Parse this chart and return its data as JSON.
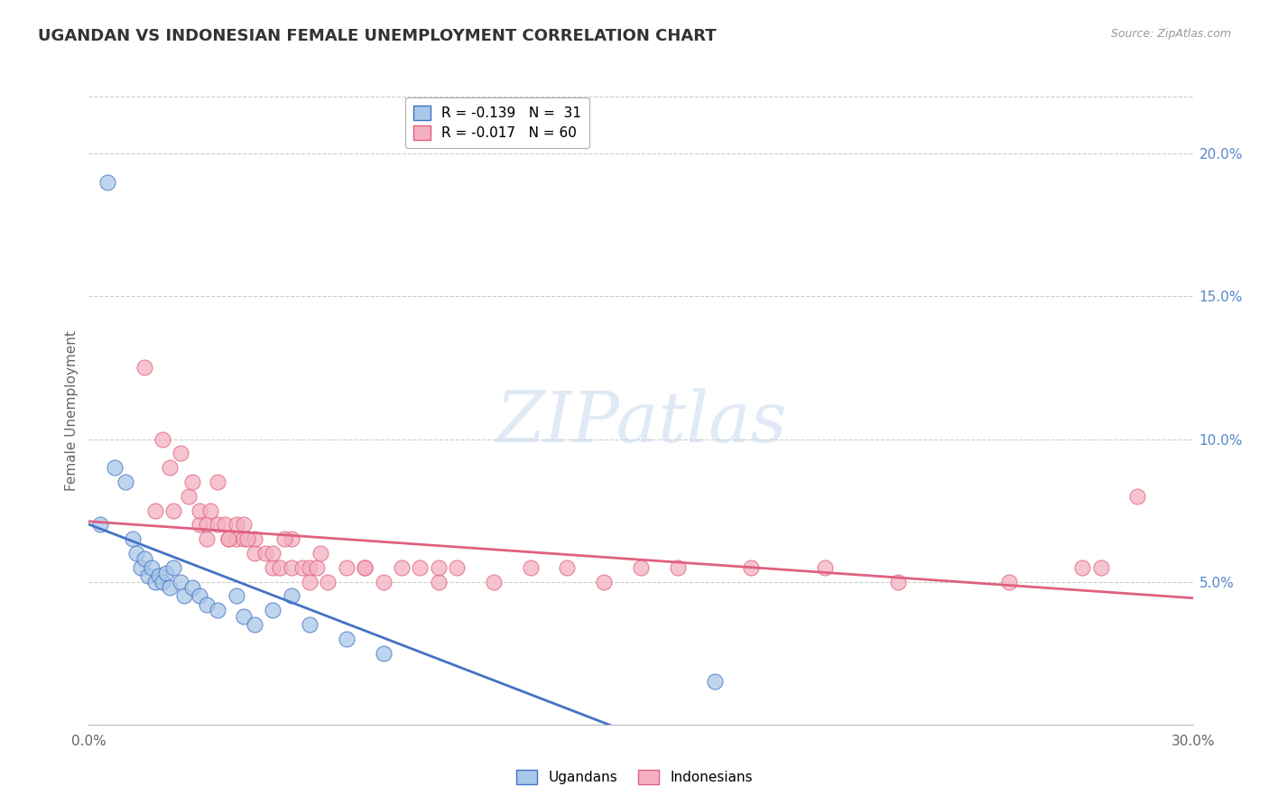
{
  "title": "UGANDAN VS INDONESIAN FEMALE UNEMPLOYMENT CORRELATION CHART",
  "source": "Source: ZipAtlas.com",
  "ylabel": "Female Unemployment",
  "right_yticks": [
    5.0,
    10.0,
    15.0,
    20.0
  ],
  "xmin": 0.0,
  "xmax": 30.0,
  "ymin": 0.0,
  "ymax": 22.0,
  "ugandan_color": "#a8c8e8",
  "indonesian_color": "#f4b0c0",
  "ugandan_line_color": "#4472c4",
  "indonesian_line_color": "#e06080",
  "legend_ugandan_label": "R = -0.139   N =  31",
  "legend_indonesian_label": "R = -0.017   N = 60",
  "ugandan_x": [
    0.5,
    0.7,
    1.0,
    1.2,
    1.3,
    1.4,
    1.5,
    1.6,
    1.7,
    1.8,
    1.9,
    2.0,
    2.1,
    2.2,
    2.3,
    2.5,
    2.6,
    2.8,
    3.0,
    3.2,
    3.5,
    4.0,
    4.2,
    4.5,
    5.0,
    5.5,
    6.0,
    7.0,
    8.0,
    0.3,
    17.0
  ],
  "ugandan_y": [
    19.0,
    9.0,
    8.5,
    6.5,
    6.0,
    5.5,
    5.8,
    5.2,
    5.5,
    5.0,
    5.2,
    5.0,
    5.3,
    4.8,
    5.5,
    5.0,
    4.5,
    4.8,
    4.5,
    4.2,
    4.0,
    4.5,
    3.8,
    3.5,
    4.0,
    4.5,
    3.5,
    3.0,
    2.5,
    7.0,
    1.5
  ],
  "indonesian_x": [
    1.5,
    2.0,
    2.2,
    2.5,
    2.7,
    2.8,
    3.0,
    3.0,
    3.2,
    3.3,
    3.5,
    3.5,
    3.7,
    3.8,
    4.0,
    4.0,
    4.2,
    4.2,
    4.5,
    4.5,
    4.8,
    5.0,
    5.0,
    5.2,
    5.5,
    5.5,
    5.8,
    6.0,
    6.0,
    6.2,
    6.5,
    7.0,
    7.5,
    8.0,
    8.5,
    9.0,
    9.5,
    10.0,
    11.0,
    12.0,
    13.0,
    14.0,
    15.0,
    16.0,
    18.0,
    20.0,
    22.0,
    25.0,
    27.0,
    28.5,
    1.8,
    2.3,
    3.2,
    3.8,
    4.3,
    5.3,
    6.3,
    7.5,
    9.5,
    27.5
  ],
  "indonesian_y": [
    12.5,
    10.0,
    9.0,
    9.5,
    8.0,
    8.5,
    7.0,
    7.5,
    7.0,
    7.5,
    8.5,
    7.0,
    7.0,
    6.5,
    6.5,
    7.0,
    6.5,
    7.0,
    6.0,
    6.5,
    6.0,
    5.5,
    6.0,
    5.5,
    5.5,
    6.5,
    5.5,
    5.5,
    5.0,
    5.5,
    5.0,
    5.5,
    5.5,
    5.0,
    5.5,
    5.5,
    5.0,
    5.5,
    5.0,
    5.5,
    5.5,
    5.0,
    5.5,
    5.5,
    5.5,
    5.5,
    5.0,
    5.0,
    5.5,
    8.0,
    7.5,
    7.5,
    6.5,
    6.5,
    6.5,
    6.5,
    6.0,
    5.5,
    5.5,
    5.5
  ]
}
